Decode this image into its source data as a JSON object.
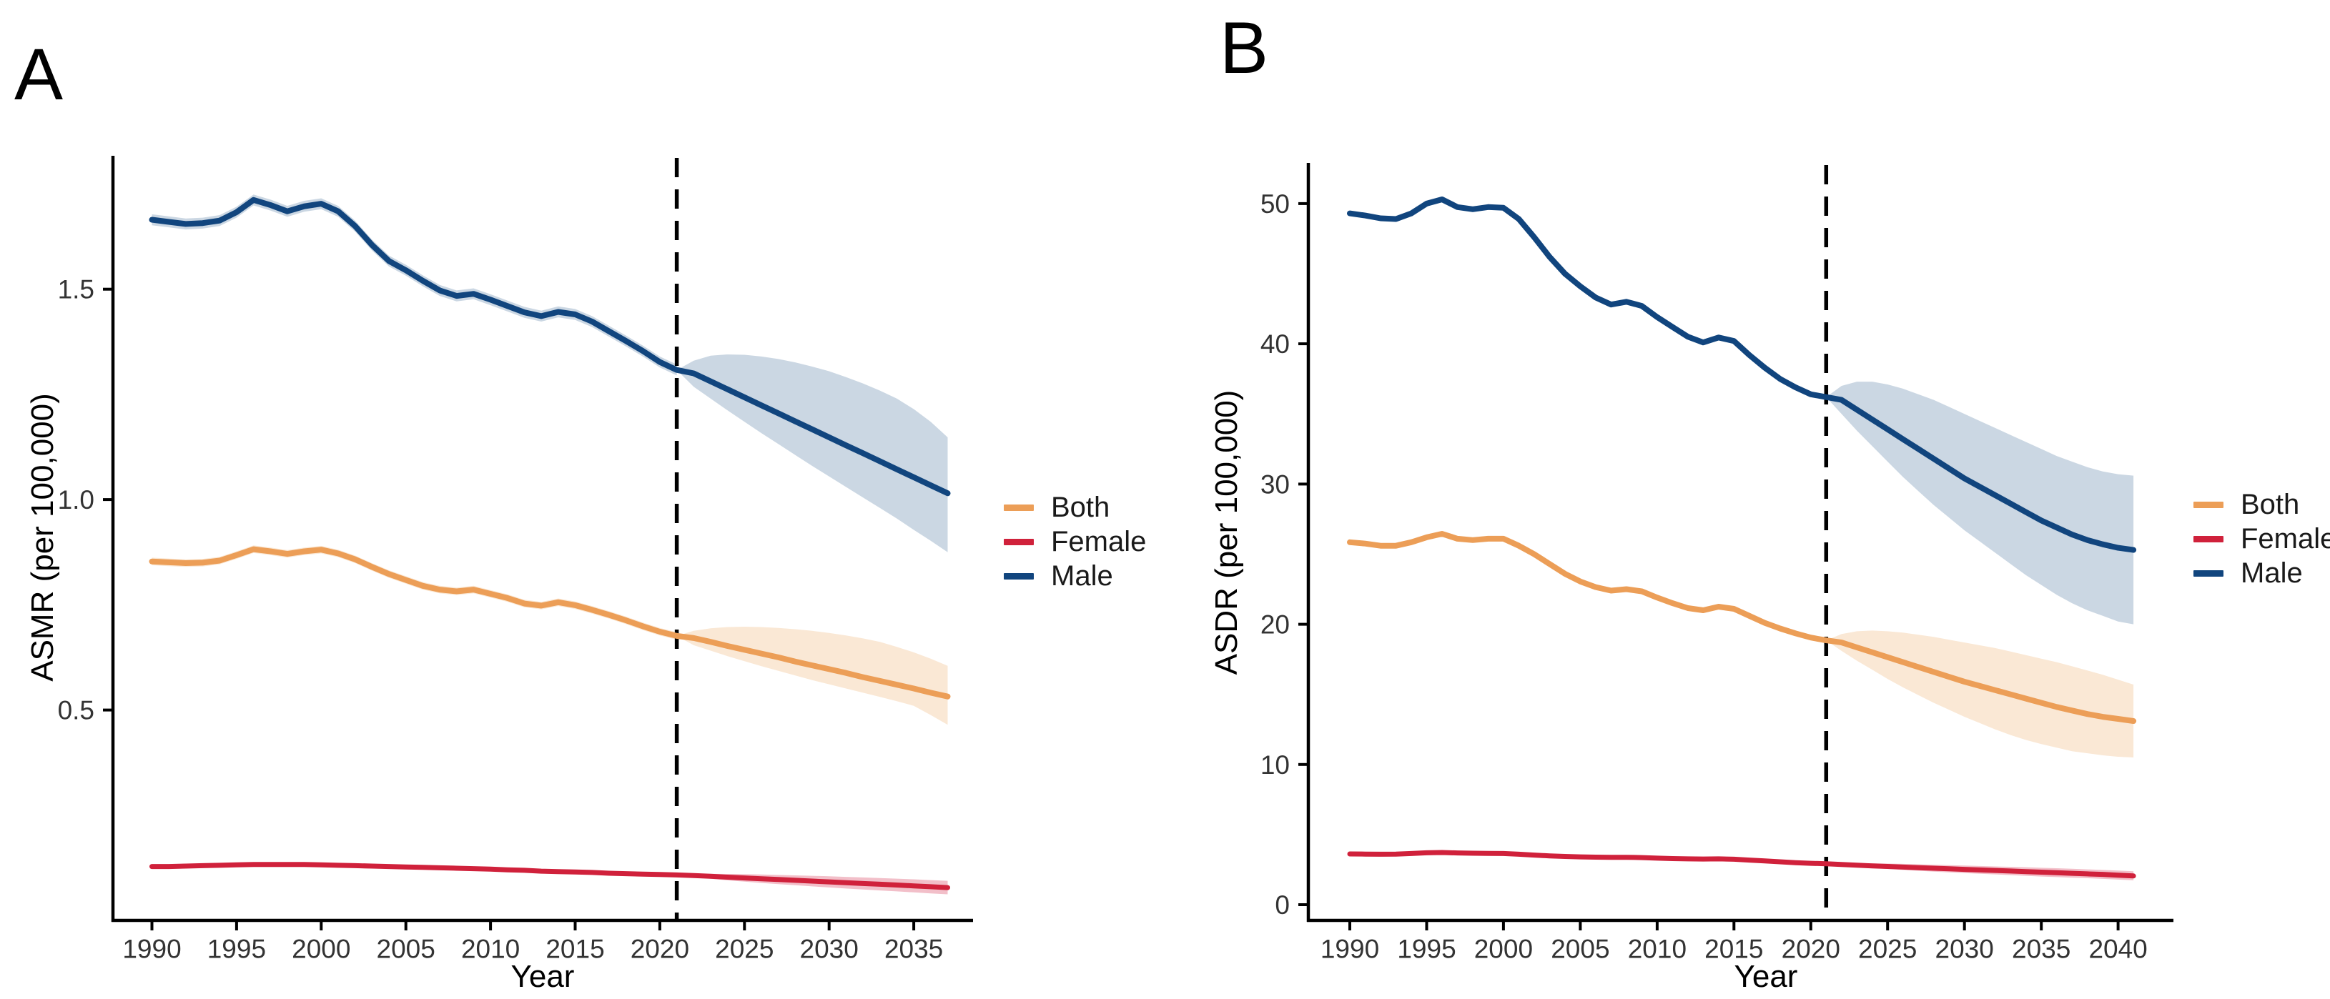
{
  "figure": {
    "background": "#ffffff",
    "axis_color": "#000000",
    "tick_text_color": "#333333",
    "dashed_line_color": "#000000"
  },
  "chart_data": [
    {
      "type": "line",
      "tag": "A",
      "ylabel": "ASMR (per 100,000)",
      "xlabel": "Year",
      "xlim": [
        1987.7,
        2038.5
      ],
      "ylim": [
        0,
        1.817
      ],
      "x_ticks": [
        1990,
        1995,
        2000,
        2005,
        2010,
        2015,
        2020,
        2025,
        2030,
        2035
      ],
      "x_tick_labels": [
        "1990",
        "1995",
        "2000",
        "2005",
        "2010",
        "2015",
        "2020",
        "2025",
        "2030",
        "2035"
      ],
      "y_ticks": [
        0.5,
        1.0,
        1.5
      ],
      "y_tick_labels": [
        "0.5",
        "1.0",
        "1.5"
      ],
      "history_start_year": 1990,
      "forecast_start_year": 2021,
      "vline_year": 2021,
      "grid": false,
      "legend_position": "right",
      "series": [
        {
          "name": "Both",
          "color": "#EC9E57",
          "band_color": "#FAE8D5",
          "history_band": 0.009,
          "history": [
            0.853,
            0.851,
            0.849,
            0.85,
            0.855,
            0.868,
            0.882,
            0.877,
            0.871,
            0.877,
            0.881,
            0.872,
            0.858,
            0.84,
            0.823,
            0.809,
            0.795,
            0.786,
            0.782,
            0.786,
            0.776,
            0.766,
            0.753,
            0.748,
            0.756,
            0.749,
            0.738,
            0.726,
            0.713,
            0.699,
            0.686,
            0.676
          ],
          "forecast": [
            0.676,
            0.671,
            0.662,
            0.652,
            0.643,
            0.634,
            0.625,
            0.615,
            0.606,
            0.597,
            0.588,
            0.578,
            0.569,
            0.56,
            0.551,
            0.541,
            0.532
          ],
          "forecast_hi": [
            0.676,
            0.688,
            0.694,
            0.697,
            0.698,
            0.697,
            0.695,
            0.692,
            0.688,
            0.683,
            0.677,
            0.67,
            0.662,
            0.65,
            0.637,
            0.622,
            0.605
          ],
          "forecast_lo": [
            0.676,
            0.654,
            0.641,
            0.628,
            0.616,
            0.604,
            0.593,
            0.582,
            0.571,
            0.561,
            0.551,
            0.541,
            0.531,
            0.521,
            0.51,
            0.488,
            0.465
          ]
        },
        {
          "name": "Female",
          "color": "#D0213B",
          "band_color": "#F2BFC9",
          "history_band": 0.004,
          "history": [
            0.128,
            0.128,
            0.129,
            0.13,
            0.131,
            0.132,
            0.133,
            0.133,
            0.133,
            0.133,
            0.132,
            0.131,
            0.13,
            0.129,
            0.128,
            0.127,
            0.126,
            0.125,
            0.124,
            0.123,
            0.122,
            0.12,
            0.119,
            0.117,
            0.116,
            0.115,
            0.114,
            0.112,
            0.111,
            0.11,
            0.109,
            0.108
          ],
          "forecast": [
            0.108,
            0.1065,
            0.1047,
            0.1028,
            0.1009,
            0.099,
            0.0971,
            0.0953,
            0.0934,
            0.0915,
            0.0896,
            0.0877,
            0.0859,
            0.084,
            0.0821,
            0.08,
            0.078
          ],
          "forecast_hi": [
            0.108,
            0.11,
            0.1105,
            0.1104,
            0.1098,
            0.109,
            0.108,
            0.107,
            0.1059,
            0.1047,
            0.1034,
            0.102,
            0.1006,
            0.0991,
            0.0976,
            0.0958,
            0.094
          ],
          "forecast_lo": [
            0.108,
            0.103,
            0.0989,
            0.0952,
            0.092,
            0.089,
            0.0862,
            0.0836,
            0.0809,
            0.0783,
            0.0758,
            0.0734,
            0.0712,
            0.0689,
            0.0666,
            0.0642,
            0.062
          ]
        },
        {
          "name": "Male",
          "color": "#11457E",
          "band_color": "#CBD7E3",
          "history_band": 0.013,
          "history": [
            1.665,
            1.66,
            1.655,
            1.657,
            1.663,
            1.683,
            1.712,
            1.7,
            1.685,
            1.697,
            1.703,
            1.685,
            1.65,
            1.605,
            1.567,
            1.545,
            1.52,
            1.497,
            1.484,
            1.489,
            1.475,
            1.46,
            1.445,
            1.436,
            1.446,
            1.44,
            1.423,
            1.4,
            1.377,
            1.353,
            1.327,
            1.308
          ],
          "forecast": [
            1.308,
            1.3,
            1.281,
            1.262,
            1.243,
            1.224,
            1.205,
            1.186,
            1.167,
            1.148,
            1.129,
            1.11,
            1.091,
            1.072,
            1.053,
            1.034,
            1.015
          ],
          "forecast_hi": [
            1.308,
            1.33,
            1.342,
            1.345,
            1.344,
            1.34,
            1.334,
            1.326,
            1.316,
            1.305,
            1.291,
            1.276,
            1.259,
            1.24,
            1.215,
            1.185,
            1.148
          ],
          "forecast_lo": [
            1.308,
            1.268,
            1.24,
            1.212,
            1.185,
            1.158,
            1.132,
            1.106,
            1.08,
            1.055,
            1.03,
            1.005,
            0.98,
            0.955,
            0.928,
            0.902,
            0.875
          ]
        }
      ]
    },
    {
      "type": "line",
      "tag": "B",
      "ylabel": "ASDR (per 100,000)",
      "xlabel": "Year",
      "xlim": [
        1987.3,
        2043.6
      ],
      "ylim": [
        -1.12,
        52.9
      ],
      "x_ticks": [
        1990,
        1995,
        2000,
        2005,
        2010,
        2015,
        2020,
        2025,
        2030,
        2035,
        2040
      ],
      "x_tick_labels": [
        "1990",
        "1995",
        "2000",
        "2005",
        "2010",
        "2015",
        "2020",
        "2025",
        "2030",
        "2035",
        "2040"
      ],
      "y_ticks": [
        0,
        10,
        20,
        30,
        40,
        50
      ],
      "y_tick_labels": [
        "0",
        "10",
        "20",
        "30",
        "40",
        "50"
      ],
      "history_start_year": 1990,
      "forecast_start_year": 2021,
      "vline_year": 2021,
      "grid": false,
      "legend_position": "right",
      "series": [
        {
          "name": "Both",
          "color": "#EC9E57",
          "band_color": "#FAE8D5",
          "history_band": 0,
          "history": [
            25.85,
            25.75,
            25.6,
            25.6,
            25.85,
            26.2,
            26.45,
            26.1,
            26.0,
            26.1,
            26.1,
            25.6,
            25.0,
            24.3,
            23.6,
            23.05,
            22.65,
            22.4,
            22.5,
            22.35,
            21.9,
            21.5,
            21.15,
            21.0,
            21.25,
            21.1,
            20.6,
            20.1,
            19.7,
            19.35,
            19.05,
            18.85
          ],
          "forecast": [
            18.85,
            18.7,
            18.35,
            18.0,
            17.65,
            17.3,
            16.95,
            16.6,
            16.25,
            15.9,
            15.6,
            15.3,
            15.0,
            14.7,
            14.4,
            14.1,
            13.85,
            13.6,
            13.4,
            13.25,
            13.1
          ],
          "forecast_hi": [
            18.85,
            19.3,
            19.5,
            19.55,
            19.5,
            19.4,
            19.25,
            19.1,
            18.9,
            18.7,
            18.5,
            18.3,
            18.05,
            17.8,
            17.55,
            17.3,
            17.0,
            16.7,
            16.4,
            16.05,
            15.7
          ],
          "forecast_lo": [
            18.85,
            18.1,
            17.4,
            16.75,
            16.1,
            15.5,
            14.95,
            14.4,
            13.9,
            13.4,
            12.95,
            12.5,
            12.1,
            11.75,
            11.45,
            11.2,
            10.95,
            10.8,
            10.65,
            10.55,
            10.5
          ]
        },
        {
          "name": "Female",
          "color": "#D0213B",
          "band_color": "#F2BFC9",
          "history_band": 0,
          "history": [
            3.62,
            3.61,
            3.6,
            3.61,
            3.65,
            3.7,
            3.72,
            3.69,
            3.67,
            3.66,
            3.65,
            3.6,
            3.54,
            3.48,
            3.44,
            3.41,
            3.39,
            3.38,
            3.38,
            3.36,
            3.32,
            3.29,
            3.27,
            3.26,
            3.27,
            3.24,
            3.18,
            3.12,
            3.06,
            3.0,
            2.95,
            2.92
          ],
          "forecast": [
            2.92,
            2.87,
            2.82,
            2.77,
            2.73,
            2.68,
            2.64,
            2.6,
            2.56,
            2.52,
            2.48,
            2.44,
            2.4,
            2.36,
            2.32,
            2.28,
            2.24,
            2.2,
            2.16,
            2.1,
            2.05
          ],
          "forecast_hi": [
            2.92,
            2.95,
            2.96,
            2.95,
            2.93,
            2.91,
            2.88,
            2.85,
            2.82,
            2.79,
            2.76,
            2.73,
            2.7,
            2.67,
            2.63,
            2.6,
            2.56,
            2.52,
            2.48,
            2.43,
            2.38
          ],
          "forecast_lo": [
            2.92,
            2.79,
            2.7,
            2.62,
            2.55,
            2.48,
            2.42,
            2.36,
            2.31,
            2.26,
            2.21,
            2.16,
            2.11,
            2.06,
            2.01,
            1.97,
            1.93,
            1.89,
            1.84,
            1.79,
            1.74
          ]
        },
        {
          "name": "Male",
          "color": "#11457E",
          "band_color": "#CBD7E3",
          "history_band": 0,
          "history": [
            49.3,
            49.15,
            48.95,
            48.9,
            49.3,
            50.0,
            50.3,
            49.75,
            49.6,
            49.75,
            49.7,
            48.9,
            47.6,
            46.2,
            45.0,
            44.1,
            43.3,
            42.8,
            43.0,
            42.7,
            41.9,
            41.2,
            40.5,
            40.1,
            40.45,
            40.2,
            39.2,
            38.3,
            37.5,
            36.9,
            36.4,
            36.2
          ],
          "forecast": [
            36.2,
            36.0,
            35.3,
            34.6,
            33.9,
            33.2,
            32.5,
            31.8,
            31.1,
            30.4,
            29.8,
            29.2,
            28.6,
            28.0,
            27.4,
            26.9,
            26.4,
            26.0,
            25.7,
            25.45,
            25.3
          ],
          "forecast_hi": [
            36.2,
            37.0,
            37.3,
            37.3,
            37.1,
            36.8,
            36.4,
            36.0,
            35.5,
            35.0,
            34.5,
            34.0,
            33.5,
            33.0,
            32.5,
            32.0,
            31.6,
            31.2,
            30.9,
            30.7,
            30.6
          ],
          "forecast_lo": [
            36.2,
            35.0,
            33.8,
            32.7,
            31.6,
            30.5,
            29.5,
            28.5,
            27.6,
            26.7,
            25.9,
            25.1,
            24.3,
            23.5,
            22.8,
            22.1,
            21.5,
            21.0,
            20.6,
            20.2,
            20.0
          ]
        }
      ]
    }
  ]
}
